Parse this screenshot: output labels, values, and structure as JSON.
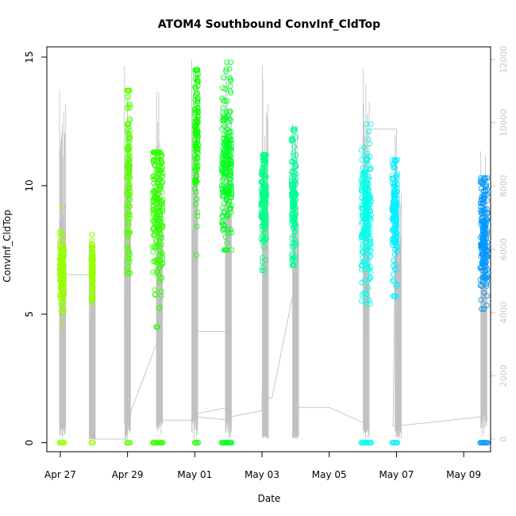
{
  "chart_data": {
    "type": "scatter",
    "title": "ATOM4 Southbound ConvInf_CldTop",
    "xlabel": "Date",
    "ylabel": "ConvInf_CldTop",
    "xlim": [
      -0.4,
      12.8
    ],
    "ylim": [
      -0.35,
      15.4
    ],
    "x_tick_values": [
      0,
      2,
      4,
      6,
      8,
      10,
      12
    ],
    "x_tick_labels": [
      "Apr 27",
      "Apr 29",
      "May 01",
      "May 03",
      "May 05",
      "May 07",
      "May 09"
    ],
    "y_tick_values": [
      0,
      5,
      10,
      15
    ],
    "y_tick_labels": [
      "0",
      "5",
      "10",
      "15"
    ],
    "secondary_axis": {
      "range": [
        -400,
        12400
      ],
      "tick_values": [
        0,
        2000,
        4000,
        6000,
        8000,
        10000,
        12000
      ],
      "tick_labels": [
        "0",
        "2000",
        "4000",
        "6000",
        "8000",
        "10000",
        "12000"
      ],
      "color": "#c8c8c8"
    },
    "series": [
      {
        "name": "Apr 27",
        "color": "#99ff00",
        "clusters": [
          {
            "x": 0.05,
            "width": 0.14,
            "center": 6.6,
            "spread": 0.7,
            "min": 4.6,
            "max": 9.2,
            "zeros": true
          }
        ]
      },
      {
        "name": "Apr 28",
        "color": "#99ff00",
        "clusters": [
          {
            "x": 0.95,
            "width": 0.06,
            "center": 6.7,
            "spread": 0.5,
            "min": 5.4,
            "max": 8.1,
            "zeros": true
          }
        ]
      },
      {
        "name": "Apr 29",
        "color": "#55ff00",
        "clusters": [
          {
            "x": 2.03,
            "width": 0.1,
            "center": 10.5,
            "spread": 2.0,
            "min": 6.6,
            "max": 13.7,
            "zeros": true
          }
        ]
      },
      {
        "name": "Apr 30",
        "color": "#33ff00",
        "clusters": [
          {
            "x": 2.9,
            "width": 0.3,
            "center": 9.3,
            "spread": 1.6,
            "min": 4.5,
            "max": 11.3,
            "zeros": true
          }
        ]
      },
      {
        "name": "May 01",
        "color": "#11ff00",
        "clusters": [
          {
            "x": 4.05,
            "width": 0.1,
            "center": 12.0,
            "spread": 1.6,
            "min": 7.3,
            "max": 14.5,
            "zeros": true
          }
        ]
      },
      {
        "name": "May 02",
        "color": "#00ff22",
        "clusters": [
          {
            "x": 4.95,
            "width": 0.3,
            "center": 11.0,
            "spread": 1.5,
            "min": 7.5,
            "max": 14.8,
            "zeros": true
          }
        ]
      },
      {
        "name": "May 03",
        "color": "#00ff88",
        "clusters": [
          {
            "x": 6.05,
            "width": 0.16,
            "center": 9.5,
            "spread": 1.1,
            "min": 6.7,
            "max": 11.2,
            "zeros": false
          }
        ]
      },
      {
        "name": "May 04",
        "color": "#00ff99",
        "clusters": [
          {
            "x": 6.95,
            "width": 0.14,
            "center": 9.5,
            "spread": 1.4,
            "min": 6.9,
            "max": 12.2,
            "zeros": false
          }
        ]
      },
      {
        "name": "May 06",
        "color": "#00ffee",
        "clusters": [
          {
            "x": 9.1,
            "width": 0.3,
            "center": 8.8,
            "spread": 1.5,
            "min": 5.4,
            "max": 12.4,
            "zeros": true
          }
        ]
      },
      {
        "name": "May 07",
        "color": "#00f0ff",
        "clusters": [
          {
            "x": 9.95,
            "width": 0.16,
            "center": 8.8,
            "spread": 1.3,
            "min": 5.7,
            "max": 11.0,
            "zeros": true
          }
        ]
      },
      {
        "name": "May 09",
        "color": "#0099ff",
        "clusters": [
          {
            "x": 12.6,
            "width": 0.22,
            "center": 7.9,
            "spread": 1.2,
            "min": 5.2,
            "max": 10.3,
            "zeros": true
          }
        ]
      }
    ],
    "gray_lines": {
      "color": "#c0c0c0",
      "spikes": [
        {
          "x": 0.07,
          "top": 11000,
          "bottom": 400
        },
        {
          "x": 0.95,
          "top": 6200,
          "bottom": 0
        },
        {
          "x": 2.0,
          "top": 11800,
          "bottom": 500
        },
        {
          "x": 2.95,
          "top": 11000,
          "bottom": 600
        },
        {
          "x": 4.0,
          "top": 12000,
          "bottom": 600
        },
        {
          "x": 5.0,
          "top": 11700,
          "bottom": 600
        },
        {
          "x": 6.1,
          "top": 11800,
          "bottom": 100
        },
        {
          "x": 7.0,
          "top": 10000,
          "bottom": 100
        },
        {
          "x": 9.1,
          "top": 11700,
          "bottom": 300
        },
        {
          "x": 10.05,
          "top": 9600,
          "bottom": 300
        },
        {
          "x": 12.6,
          "top": 9100,
          "bottom": 800
        }
      ],
      "path": [
        [
          0.0,
          100
        ],
        [
          0.0,
          5200
        ],
        [
          0.95,
          5200
        ],
        [
          0.95,
          0
        ],
        [
          2.0,
          0
        ],
        [
          2.0,
          5600
        ],
        [
          1.9,
          5600
        ],
        [
          2.0,
          600
        ],
        [
          3.0,
          3400
        ],
        [
          3.0,
          400
        ],
        [
          2.9,
          600
        ],
        [
          4.0,
          600
        ],
        [
          4.0,
          3400
        ],
        [
          5.0,
          3400
        ],
        [
          5.0,
          600
        ],
        [
          4.05,
          700
        ],
        [
          4.05,
          800
        ],
        [
          5.0,
          1000
        ],
        [
          5.05,
          700
        ],
        [
          6.0,
          900
        ],
        [
          6.05,
          5500
        ],
        [
          6.05,
          1300
        ],
        [
          6.3,
          1300
        ],
        [
          7.0,
          5000
        ],
        [
          7.0,
          1000
        ],
        [
          8.0,
          1000
        ],
        [
          9.05,
          500
        ],
        [
          9.15,
          9800
        ],
        [
          10.0,
          9800
        ],
        [
          10.0,
          9600
        ],
        [
          9.9,
          400
        ],
        [
          12.5,
          700
        ],
        [
          12.6,
          800
        ]
      ]
    }
  }
}
